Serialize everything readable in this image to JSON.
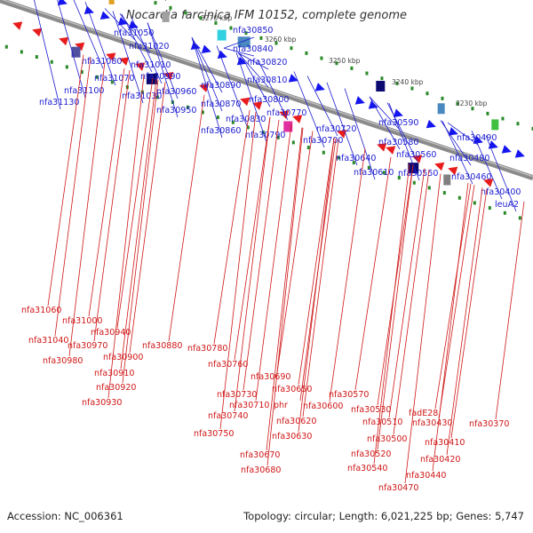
{
  "title": "Nocardia farcinica IFM 10152, complete genome",
  "footer": {
    "accession": "Accession: NC_006361",
    "summary": "Topology: circular; Length: 6,021,225 bp; Genes: 5,747"
  },
  "colors": {
    "forward_gene": "#1515f0",
    "reverse_gene": "#e81c1c",
    "backbone": "#8a8a8a",
    "label_forward": "#1d1dd1",
    "label_reverse": "#d01616",
    "tick_green": "#2a8a2a"
  },
  "ticks": [
    "3300 kbp",
    "3290 kbp",
    "3280 kbp",
    "3270 kbp",
    "3260 kbp",
    "3250 kbp",
    "3240 kbp",
    "3230 kbp"
  ],
  "forward_labels": [
    "nfa31050",
    "nfa31020",
    "nfa31080",
    "nfa31010",
    "nfa31070",
    "nfa30990",
    "nfa31100",
    "nfa31030",
    "nfa30960",
    "nfa31130",
    "nfa30950",
    "nfa30850",
    "nfa30840",
    "nfa30820",
    "nfa30890",
    "nfa30810",
    "nfa30870",
    "nfa30800",
    "nfa30830",
    "nfa30770",
    "nfa30860",
    "nfa30790",
    "nfa30720",
    "nfa30700",
    "nfa30590",
    "nfa30580",
    "nfa30640",
    "nfa30560",
    "nfa30610",
    "nfa30550",
    "nfa30490",
    "nfa30480",
    "nfa30460",
    "nfa30400",
    "leuA2"
  ],
  "reverse_labels": [
    "nfa31060",
    "nfa31000",
    "nfa31040",
    "nfa30940",
    "nfa30970",
    "nfa30880",
    "nfa30980",
    "nfa30900",
    "nfa30910",
    "nfa30920",
    "nfa30930",
    "nfa30780",
    "nfa30760",
    "nfa30690",
    "nfa30730",
    "nfa30650",
    "nfa30740",
    "nfa30710",
    "phr",
    "nfa30750",
    "nfa30600",
    "nfa30620",
    "nfa30630",
    "nfa30670",
    "nfa30680",
    "nfa30570",
    "nfa30530",
    "nfa30510",
    "nfa30500",
    "nfa30520",
    "nfa30540",
    "fadE28",
    "nfa30430",
    "nfa30410",
    "nfa30420",
    "nfa30440",
    "nfa30470",
    "nfa30370"
  ]
}
